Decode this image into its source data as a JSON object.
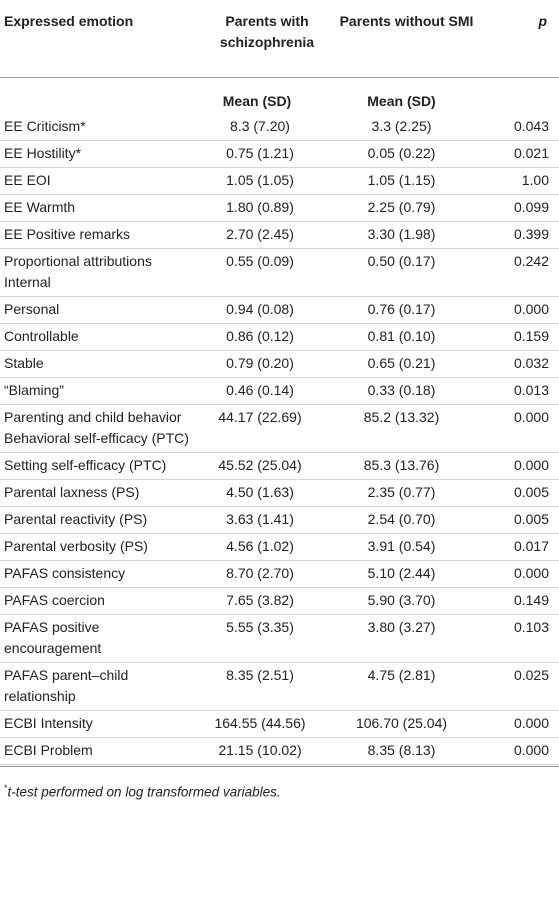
{
  "header": {
    "col1": "Expressed emotion",
    "col2": "Parents with schizophrenia",
    "col3": "Parents without SMI",
    "col4": "p"
  },
  "subheader": {
    "col2": "Mean (SD)",
    "col3": "Mean (SD)"
  },
  "rows": [
    {
      "label": "EE Criticism*",
      "m1": "8.3 (7.20)",
      "m2": "3.3 (2.25)",
      "p": "0.043"
    },
    {
      "label": "EE Hostility*",
      "m1": "0.75 (1.21)",
      "m2": "0.05 (0.22)",
      "p": "0.021"
    },
    {
      "label": "EE EOI",
      "m1": "1.05 (1.05)",
      "m2": "1.05 (1.15)",
      "p": "1.00"
    },
    {
      "label": "EE Warmth",
      "m1": "1.80 (0.89)",
      "m2": "2.25 (0.79)",
      "p": "0.099"
    },
    {
      "label": "EE Positive remarks",
      "m1": "2.70 (2.45)",
      "m2": "3.30 (1.98)",
      "p": "0.399"
    },
    {
      "label": "Proportional attributions Internal",
      "m1": "0.55 (0.09)",
      "m2": "0.50 (0.17)",
      "p": "0.242"
    },
    {
      "label": "Personal",
      "m1": "0.94 (0.08)",
      "m2": "0.76 (0.17)",
      "p": "0.000"
    },
    {
      "label": "Controllable",
      "m1": "0.86 (0.12)",
      "m2": "0.81 (0.10)",
      "p": "0.159"
    },
    {
      "label": "Stable",
      "m1": "0.79 (0.20)",
      "m2": "0.65 (0.21)",
      "p": "0.032"
    },
    {
      "label": "“Blaming”",
      "m1": "0.46 (0.14)",
      "m2": "0.33 (0.18)",
      "p": "0.013"
    },
    {
      "label": "Parenting and child behavior Behavioral self-efficacy (PTC)",
      "m1": "44.17 (22.69)",
      "m2": "85.2 (13.32)",
      "p": "0.000"
    },
    {
      "label": "Setting self-efficacy (PTC)",
      "m1": "45.52 (25.04)",
      "m2": "85.3 (13.76)",
      "p": "0.000"
    },
    {
      "label": "Parental laxness (PS)",
      "m1": "4.50 (1.63)",
      "m2": "2.35 (0.77)",
      "p": "0.005"
    },
    {
      "label": "Parental reactivity (PS)",
      "m1": "3.63 (1.41)",
      "m2": "2.54 (0.70)",
      "p": "0.005"
    },
    {
      "label": "Parental verbosity (PS)",
      "m1": "4.56 (1.02)",
      "m2": "3.91 (0.54)",
      "p": "0.017"
    },
    {
      "label": "PAFAS consistency",
      "m1": "8.70 (2.70)",
      "m2": "5.10 (2.44)",
      "p": "0.000"
    },
    {
      "label": "PAFAS coercion",
      "m1": "7.65 (3.82)",
      "m2": "5.90 (3.70)",
      "p": "0.149"
    },
    {
      "label": "PAFAS positive encouragement",
      "m1": "5.55 (3.35)",
      "m2": "3.80 (3.27)",
      "p": "0.103"
    },
    {
      "label": "PAFAS parent–child relationship",
      "m1": "8.35 (2.51)",
      "m2": "4.75 (2.81)",
      "p": "0.025"
    },
    {
      "label": "ECBI Intensity",
      "m1": "164.55 (44.56)",
      "m2": "106.70 (25.04)",
      "p": "0.000"
    },
    {
      "label": "ECBI Problem",
      "m1": "21.15 (10.02)",
      "m2": "8.35 (8.13)",
      "p": "0.000"
    }
  ],
  "footnote": {
    "mark": "*",
    "text": "t-test performed on log transformed variables."
  }
}
